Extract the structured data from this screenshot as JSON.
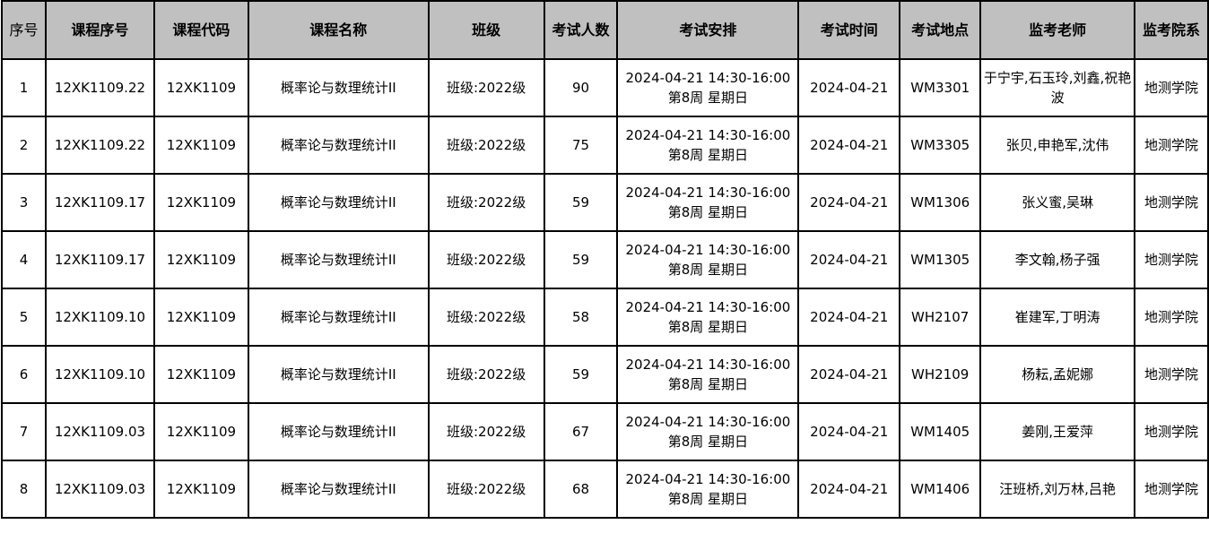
{
  "header_bg": "#c0c0c0",
  "headers": [
    "序号",
    "课程序号",
    "课程代码",
    "课程名称",
    "班级",
    "考试人数",
    "考试安排",
    "考试时间",
    "考试地点",
    "监考老师",
    "监考院系"
  ],
  "rows": [
    {
      "no": "1",
      "course_seq": "12XK1109.22",
      "course_code": "12XK1109",
      "course_name": "概率论与数理统计II",
      "class": "班级:2022级",
      "count": "90",
      "schedule_line1": "2024-04-21 14:30-16:00",
      "schedule_line2": "第8周 星期日",
      "date": "2024-04-21",
      "room": "WM3301",
      "proctors": "于宁宇,石玉玲,刘鑫,祝艳波",
      "dept": "地测学院"
    },
    {
      "no": "2",
      "course_seq": "12XK1109.22",
      "course_code": "12XK1109",
      "course_name": "概率论与数理统计II",
      "class": "班级:2022级",
      "count": "75",
      "schedule_line1": "2024-04-21 14:30-16:00",
      "schedule_line2": "第8周 星期日",
      "date": "2024-04-21",
      "room": "WM3305",
      "proctors": "张贝,申艳军,沈伟",
      "dept": "地测学院"
    },
    {
      "no": "3",
      "course_seq": "12XK1109.17",
      "course_code": "12XK1109",
      "course_name": "概率论与数理统计II",
      "class": "班级:2022级",
      "count": "59",
      "schedule_line1": "2024-04-21 14:30-16:00",
      "schedule_line2": "第8周 星期日",
      "date": "2024-04-21",
      "room": "WM1306",
      "proctors": "张义蜜,吴琳",
      "dept": "地测学院"
    },
    {
      "no": "4",
      "course_seq": "12XK1109.17",
      "course_code": "12XK1109",
      "course_name": "概率论与数理统计II",
      "class": "班级:2022级",
      "count": "59",
      "schedule_line1": "2024-04-21 14:30-16:00",
      "schedule_line2": "第8周 星期日",
      "date": "2024-04-21",
      "room": "WM1305",
      "proctors": "李文翰,杨子强",
      "dept": "地测学院"
    },
    {
      "no": "5",
      "course_seq": "12XK1109.10",
      "course_code": "12XK1109",
      "course_name": "概率论与数理统计II",
      "class": "班级:2022级",
      "count": "58",
      "schedule_line1": "2024-04-21 14:30-16:00",
      "schedule_line2": "第8周 星期日",
      "date": "2024-04-21",
      "room": "WH2107",
      "proctors": "崔建军,丁明涛",
      "dept": "地测学院"
    },
    {
      "no": "6",
      "course_seq": "12XK1109.10",
      "course_code": "12XK1109",
      "course_name": "概率论与数理统计II",
      "class": "班级:2022级",
      "count": "59",
      "schedule_line1": "2024-04-21 14:30-16:00",
      "schedule_line2": "第8周 星期日",
      "date": "2024-04-21",
      "room": "WH2109",
      "proctors": "杨耘,孟妮娜",
      "dept": "地测学院"
    },
    {
      "no": "7",
      "course_seq": "12XK1109.03",
      "course_code": "12XK1109",
      "course_name": "概率论与数理统计II",
      "class": "班级:2022级",
      "count": "67",
      "schedule_line1": "2024-04-21 14:30-16:00",
      "schedule_line2": "第8周 星期日",
      "date": "2024-04-21",
      "room": "WM1405",
      "proctors": "姜刚,王爱萍",
      "dept": "地测学院"
    },
    {
      "no": "8",
      "course_seq": "12XK1109.03",
      "course_code": "12XK1109",
      "course_name": "概率论与数理统计II",
      "class": "班级:2022级",
      "count": "68",
      "schedule_line1": "2024-04-21 14:30-16:00",
      "schedule_line2": "第8周 星期日",
      "date": "2024-04-21",
      "room": "WM1406",
      "proctors": "汪班桥,刘万林,吕艳",
      "dept": "地测学院"
    }
  ]
}
